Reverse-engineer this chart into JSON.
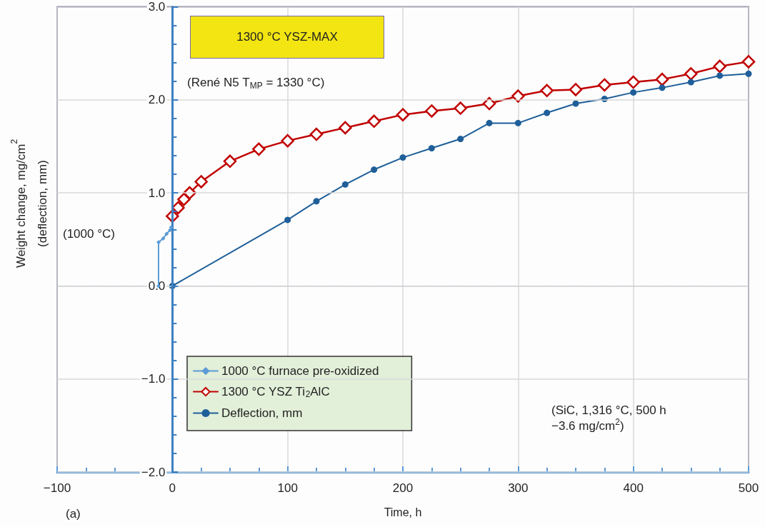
{
  "chart_data": {
    "type": "line",
    "title": "1300 °C YSZ-MAX",
    "xlabel": "Time, h",
    "ylabel": "Weight change, mg/cm$^{2}$\n(deflection, mm)",
    "xlim": [
      -100,
      500
    ],
    "xticks": [
      -100,
      0,
      100,
      200,
      300,
      400,
      500
    ],
    "ylim": [
      -2,
      3
    ],
    "yticks": [
      {
        "value": -2,
        "label": "−2.0"
      },
      {
        "value": -1,
        "label": "−1.0"
      },
      {
        "value": 0,
        "label": "0.0"
      },
      {
        "value": 1,
        "label": "1.0"
      },
      {
        "value": 2,
        "label": "2.0"
      },
      {
        "value": 3,
        "label": "3.0"
      }
    ],
    "grid": true,
    "legend": "bottom left",
    "series": [
      {
        "name": "1000 °C furnace pre-oxidized",
        "color": "#5b9bd5",
        "marker": "diamond",
        "x": [
          -12,
          -12,
          -8,
          -5,
          -2,
          -1
        ],
        "values": [
          0,
          0.47,
          0.51,
          0.56,
          0.6,
          0.63
        ]
      },
      {
        "name": "1300 °C YSZ Ti$_{2}$AlC",
        "color": "#c00000",
        "marker": "diamond",
        "x": [
          0,
          5,
          10,
          15,
          25,
          50,
          75,
          100,
          125,
          150,
          175,
          200,
          225,
          250,
          275,
          300,
          325,
          350,
          375,
          400,
          425,
          450,
          475,
          500
        ],
        "values": [
          0.75,
          0.84,
          0.93,
          1.0,
          1.12,
          1.34,
          1.47,
          1.56,
          1.63,
          1.7,
          1.77,
          1.84,
          1.88,
          1.91,
          1.96,
          2.04,
          2.1,
          2.11,
          2.16,
          2.19,
          2.22,
          2.28,
          2.36,
          2.41
        ]
      },
      {
        "name": "Deflection, mm",
        "color": "#1f5f99",
        "marker": "circle",
        "x": [
          0,
          100,
          125,
          150,
          175,
          200,
          225,
          250,
          275,
          300,
          325,
          350,
          375,
          400,
          425,
          450,
          475,
          500
        ],
        "values": [
          0,
          0.71,
          0.91,
          1.09,
          1.25,
          1.38,
          1.48,
          1.58,
          1.75,
          1.75,
          1.86,
          1.96,
          2.01,
          2.08,
          2.13,
          2.19,
          2.26,
          2.28
        ]
      }
    ],
    "ref_lines": [
      {
        "axis": "y",
        "value": 0,
        "label": null,
        "color": "#2e5597",
        "line_style": "dotted"
      }
    ],
    "annotations": [
      "(René N5 T$_{MP}$ = 1330 °C)",
      "(1000 °C)",
      "(SiC, 1,316 °C, 500 h\n−3.6 mg/cm$^{2}$)",
      "(a)"
    ]
  }
}
